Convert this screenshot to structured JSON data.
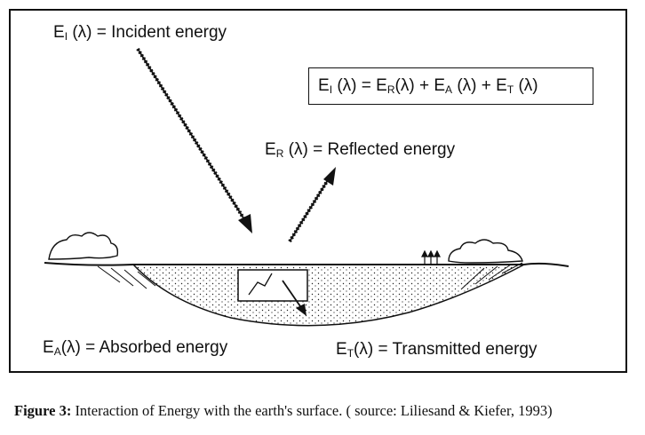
{
  "labels": {
    "incident": {
      "symbol": "E",
      "sub": "I",
      "arg": "(λ)",
      "eq": "=",
      "text": "Incident energy"
    },
    "reflected": {
      "symbol": "E",
      "sub": "R",
      "arg": "(λ)",
      "eq": "=",
      "text": "Reflected energy"
    },
    "absorbed": {
      "symbol": "E",
      "sub": "A",
      "arg": "(λ)",
      "eq": "=",
      "text": "Absorbed energy"
    },
    "transmitted": {
      "symbol": "E",
      "sub": "T",
      "arg": "(λ)",
      "eq": "=",
      "text": "Transmitted energy"
    }
  },
  "equation": {
    "lhs_symbol": "E",
    "lhs_sub": "I",
    "lhs_arg": "(λ)",
    "eq": "=",
    "t1_symbol": "E",
    "t1_sub": "R",
    "t1_arg": "(λ)",
    "plus1": "+",
    "t2_symbol": "E",
    "t2_sub": "A",
    "t2_arg": "(λ)",
    "plus2": "+",
    "t3_symbol": "E",
    "t3_sub": "T",
    "t3_arg": "(λ)"
  },
  "caption": {
    "figure": "Figure 3:",
    "text": "Interaction of Energy with the earth's surface. ( source: Liliesand & Kiefer, 1993)"
  }
}
